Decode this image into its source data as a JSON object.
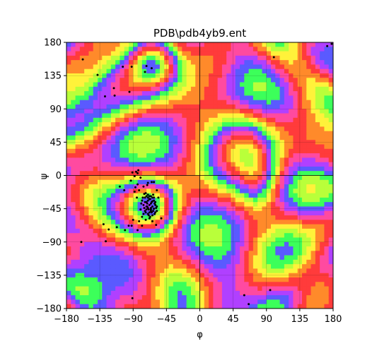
{
  "chart_data": {
    "type": "scatter",
    "title": "PDB\\pdb4yb9.ent",
    "xlabel": "φ",
    "ylabel": "ψ",
    "xlim": [
      -180,
      180
    ],
    "ylim": [
      -180,
      180
    ],
    "x_ticks": [
      -180,
      -135,
      -90,
      -45,
      0,
      45,
      90,
      135,
      180
    ],
    "y_ticks": [
      -180,
      -135,
      -90,
      -45,
      0,
      45,
      90,
      135,
      180
    ],
    "x_tick_labels": [
      "−180",
      "−135",
      "−90",
      "−45",
      "0",
      "45",
      "90",
      "135",
      "180"
    ],
    "y_tick_labels": [
      "−180",
      "−135",
      "−90",
      "−45",
      "0",
      "45",
      "90",
      "135",
      "180"
    ],
    "grid": true,
    "zero_lines": true,
    "background": "psychedelic colormap density map (red/yellow/green/blue/magenta bands)",
    "marker_color": "#000000",
    "series": [
      {
        "points": [
          [
            -158,
            157
          ],
          [
            -138,
            136
          ],
          [
            -128,
            107
          ],
          [
            -115,
            108
          ],
          [
            -116,
            118
          ],
          [
            -104,
            147
          ],
          [
            -95,
            113
          ],
          [
            -92,
            147
          ],
          [
            -74,
            140
          ],
          [
            -72,
            148
          ],
          [
            -65,
            145
          ],
          [
            -86,
            5
          ],
          [
            -88,
            -1
          ],
          [
            -84,
            3
          ],
          [
            -83,
            7
          ],
          [
            -91,
            4
          ],
          [
            -80,
            -3
          ],
          [
            -93,
            -7
          ],
          [
            -108,
            -15
          ],
          [
            -102,
            -20
          ],
          [
            -76,
            -15
          ],
          [
            -71,
            -13
          ],
          [
            -60,
            -50
          ],
          [
            -56,
            -30
          ],
          [
            -52,
            -58
          ],
          [
            -59,
            -67
          ],
          [
            -64,
            -62
          ],
          [
            -68,
            -58
          ],
          [
            -73,
            -60
          ],
          [
            -82,
            -62
          ],
          [
            -78,
            -68
          ],
          [
            -84,
            -74
          ],
          [
            -96,
            -68
          ],
          [
            -101,
            -74
          ],
          [
            -112,
            -70
          ],
          [
            -123,
            -73
          ],
          [
            -130,
            -66
          ],
          [
            -127,
            -89
          ],
          [
            -92,
            -68
          ],
          [
            -91,
            -166
          ],
          [
            -70,
            -10
          ],
          [
            -65,
            -9
          ],
          [
            -62,
            -9
          ],
          [
            -58,
            -20
          ],
          [
            -90,
            -60
          ],
          [
            -78,
            -56
          ],
          [
            -66,
            -46
          ],
          [
            -72,
            -42
          ],
          [
            -60,
            -40
          ],
          [
            -70,
            -30
          ],
          [
            -75,
            -25
          ],
          [
            -64,
            -35
          ],
          [
            -76,
            -40
          ],
          [
            -68,
            -50
          ],
          [
            -62,
            -45
          ],
          [
            -74,
            -48
          ],
          [
            -58,
            -48
          ],
          [
            -66,
            -38
          ],
          [
            -70,
            -44
          ],
          [
            -72,
            -36
          ],
          [
            -64,
            -42
          ],
          [
            -68,
            -32
          ],
          [
            -61,
            -52
          ],
          [
            -78,
            -34
          ],
          [
            -66,
            -28
          ],
          [
            -74,
            -30
          ],
          [
            -70,
            -52
          ],
          [
            -63,
            -26
          ],
          [
            -80,
            -46
          ],
          [
            -67,
            -56
          ],
          [
            -60,
            -36
          ],
          [
            -73,
            -24
          ],
          [
            -65,
            -50
          ],
          [
            -71,
            -38
          ],
          [
            -69,
            -46
          ],
          [
            -62,
            -30
          ],
          [
            -76,
            -52
          ],
          [
            -58,
            -42
          ],
          [
            -72,
            -28
          ],
          [
            -66,
            -44
          ],
          [
            -64,
            -54
          ],
          [
            -70,
            -34
          ],
          [
            -79,
            -38
          ],
          [
            -63,
            -48
          ],
          [
            -68,
            -40
          ],
          [
            -75,
            -44
          ],
          [
            -61,
            -38
          ],
          [
            -67,
            -32
          ],
          [
            -73,
            -50
          ],
          [
            -65,
            -36
          ],
          [
            -70,
            -26
          ],
          [
            -77,
            -30
          ],
          [
            -62,
            -34
          ],
          [
            -69,
            -54
          ],
          [
            -66,
            -48
          ],
          [
            -71,
            -42
          ],
          [
            -64,
            -30
          ],
          [
            -74,
            -36
          ],
          [
            -59,
            -44
          ],
          [
            -68,
            -28
          ],
          [
            -72,
            -46
          ],
          [
            -85,
            -30
          ],
          [
            -88,
            -22
          ],
          [
            -84,
            -12
          ],
          [
            -82,
            -20
          ],
          [
            -87,
            -16
          ],
          [
            60,
            -162
          ],
          [
            66,
            -174
          ],
          [
            95,
            -155
          ],
          [
            178,
            178
          ],
          [
            100,
            160
          ],
          [
            172,
            175
          ],
          [
            -160,
            -90
          ]
        ]
      }
    ]
  }
}
